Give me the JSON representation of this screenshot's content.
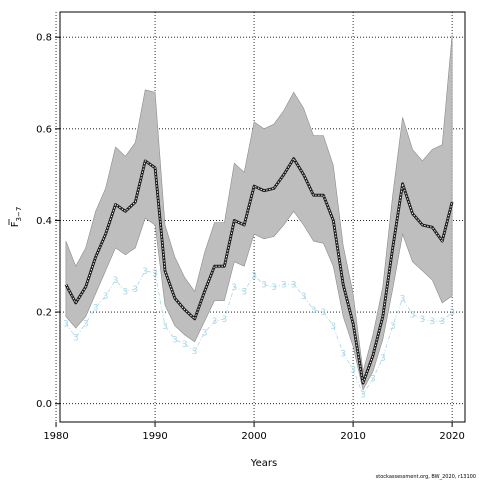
{
  "chart_data": {
    "type": "line",
    "xlabel": "Years",
    "ylabel": "F",
    "ylabel_sub": "3−7",
    "footer": "stockassessment.org, BW_2020, r13100",
    "xlim": [
      1980.4,
      2021.3
    ],
    "ylim": [
      -0.04,
      0.855
    ],
    "x_ticks": [
      1980,
      1990,
      2000,
      2010,
      2020
    ],
    "y_ticks": [
      0.0,
      0.2,
      0.4,
      0.6,
      0.8
    ],
    "y_tick_labels": [
      "0.0",
      "0.2",
      "0.4",
      "0.6",
      "0.8"
    ],
    "grid": true,
    "grid_style": "dotted",
    "band_color": "#bebebe",
    "line_color": "#000000",
    "retro_color": "#a8d8e6",
    "series": [
      {
        "role": "estimate",
        "x": [
          1981,
          1982,
          1983,
          1984,
          1985,
          1986,
          1987,
          1988,
          1989,
          1990,
          1991,
          1992,
          1993,
          1994,
          1995,
          1996,
          1997,
          1998,
          1999,
          2000,
          2001,
          2002,
          2003,
          2004,
          2005,
          2006,
          2007,
          2008,
          2009,
          2010,
          2011,
          2012,
          2013,
          2014,
          2015,
          2016,
          2017,
          2018,
          2019,
          2020
        ],
        "values": [
          0.26,
          0.22,
          0.255,
          0.32,
          0.37,
          0.435,
          0.42,
          0.44,
          0.53,
          0.515,
          0.29,
          0.23,
          0.205,
          0.185,
          0.245,
          0.3,
          0.3,
          0.4,
          0.39,
          0.475,
          0.465,
          0.47,
          0.5,
          0.535,
          0.5,
          0.455,
          0.455,
          0.4,
          0.26,
          0.175,
          0.045,
          0.105,
          0.19,
          0.34,
          0.48,
          0.415,
          0.39,
          0.385,
          0.355,
          0.44
        ]
      },
      {
        "role": "upper",
        "x": [
          1981,
          1982,
          1983,
          1984,
          1985,
          1986,
          1987,
          1988,
          1989,
          1990,
          1991,
          1992,
          1993,
          1994,
          1995,
          1996,
          1997,
          1998,
          1999,
          2000,
          2001,
          2002,
          2003,
          2004,
          2005,
          2006,
          2007,
          2008,
          2009,
          2010,
          2011,
          2012,
          2013,
          2014,
          2015,
          2016,
          2017,
          2018,
          2019,
          2020
        ],
        "values": [
          0.355,
          0.3,
          0.34,
          0.42,
          0.47,
          0.56,
          0.54,
          0.57,
          0.685,
          0.68,
          0.39,
          0.32,
          0.275,
          0.245,
          0.33,
          0.395,
          0.395,
          0.525,
          0.505,
          0.615,
          0.6,
          0.61,
          0.64,
          0.68,
          0.645,
          0.585,
          0.585,
          0.52,
          0.345,
          0.24,
          0.07,
          0.15,
          0.255,
          0.455,
          0.625,
          0.555,
          0.53,
          0.555,
          0.565,
          0.805
        ]
      },
      {
        "role": "lower",
        "x": [
          1981,
          1982,
          1983,
          1984,
          1985,
          1986,
          1987,
          1988,
          1989,
          1990,
          1991,
          1992,
          1993,
          1994,
          1995,
          1996,
          1997,
          1998,
          1999,
          2000,
          2001,
          2002,
          2003,
          2004,
          2005,
          2006,
          2007,
          2008,
          2009,
          2010,
          2011,
          2012,
          2013,
          2014,
          2015,
          2016,
          2017,
          2018,
          2019,
          2020
        ],
        "values": [
          0.19,
          0.165,
          0.19,
          0.24,
          0.29,
          0.34,
          0.325,
          0.34,
          0.405,
          0.39,
          0.215,
          0.17,
          0.15,
          0.135,
          0.18,
          0.225,
          0.225,
          0.31,
          0.3,
          0.37,
          0.36,
          0.365,
          0.39,
          0.42,
          0.39,
          0.355,
          0.35,
          0.3,
          0.19,
          0.125,
          0.03,
          0.07,
          0.14,
          0.25,
          0.37,
          0.31,
          0.29,
          0.27,
          0.22,
          0.235
        ]
      }
    ],
    "retro": {
      "label": "3",
      "x": [
        1981,
        1982,
        1983,
        1984,
        1985,
        1986,
        1987,
        1988,
        1989,
        1990,
        1991,
        1992,
        1993,
        1994,
        1995,
        1996,
        1997,
        1998,
        1999,
        2000,
        2001,
        2002,
        2003,
        2004,
        2005,
        2006,
        2007,
        2008,
        2009,
        2010,
        2011,
        2012,
        2013,
        2014,
        2015,
        2016,
        2017,
        2018,
        2019,
        2020
      ],
      "values": [
        0.175,
        0.145,
        0.175,
        0.21,
        0.235,
        0.27,
        0.245,
        0.25,
        0.29,
        0.285,
        0.17,
        0.14,
        0.13,
        0.115,
        0.155,
        0.18,
        0.185,
        0.255,
        0.245,
        0.28,
        0.26,
        0.255,
        0.26,
        0.26,
        0.235,
        0.205,
        0.2,
        0.17,
        0.11,
        0.075,
        0.02,
        0.055,
        0.1,
        0.17,
        0.23,
        0.195,
        0.185,
        0.18,
        0.18,
        0.2
      ]
    }
  }
}
